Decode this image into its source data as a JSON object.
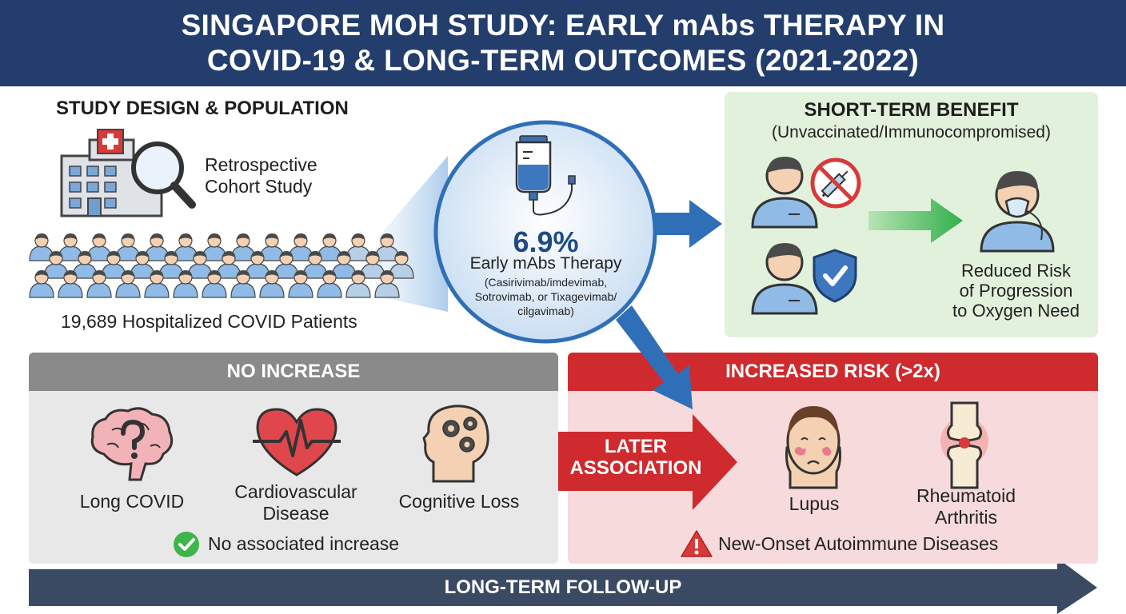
{
  "header": {
    "title_line1": "SINGAPORE MOH STUDY: EARLY mAbs THERAPY IN",
    "title_line2": "COVID-19 & LONG-TERM OUTCOMES (2021-2022)"
  },
  "study_design": {
    "heading": "STUDY DESIGN & POPULATION",
    "design_line1": "Retrospective",
    "design_line2": "Cohort Study",
    "population": "19,689 Hospitalized COVID Patients"
  },
  "therapy": {
    "percent": "6.9%",
    "label": "Early mAbs Therapy",
    "drugs_line1": "(Casirivimab/imdevimab,",
    "drugs_line2": "Sotrovimab, or Tixagevimab/",
    "drugs_line3": "cilgavimab)"
  },
  "short_term": {
    "heading": "SHORT-TERM BENEFIT",
    "subheading": "(Unvaccinated/Immunocompromised)",
    "result_line1": "Reduced Risk",
    "result_line2": "of Progression",
    "result_line3": "to Oxygen Need"
  },
  "no_increase": {
    "heading": "NO INCREASE",
    "items": [
      "Long COVID",
      "Cardiovascular",
      "Disease",
      "Cognitive Loss"
    ],
    "note": "No associated increase"
  },
  "later_association": {
    "line1": "LATER",
    "line2": "ASSOCIATION"
  },
  "increased_risk": {
    "heading": "INCREASED RISK (>2x)",
    "lupus": "Lupus",
    "ra_line1": "Rheumatoid",
    "ra_line2": "Arthritis",
    "note": "New-Onset Autoimmune Diseases"
  },
  "footer": {
    "label": "LONG-TERM FOLLOW-UP"
  },
  "colors": {
    "header_bg": "#233d6c",
    "accent_blue": "#2f6fb8",
    "accent_red": "#cf2a2e",
    "accent_green": "#3cb54a",
    "neutral_gray": "#8a8a8a"
  }
}
